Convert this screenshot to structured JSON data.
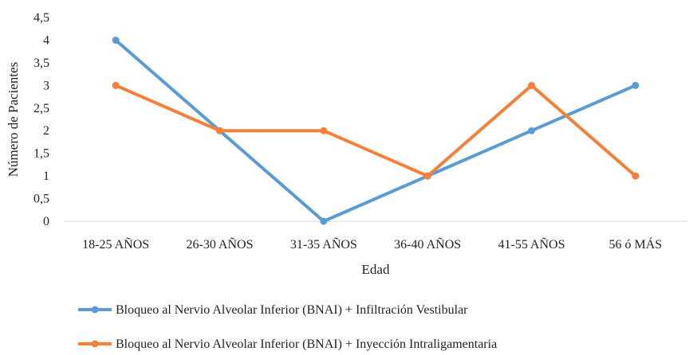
{
  "chart_data": {
    "type": "line",
    "title": "",
    "xlabel": "Edad",
    "ylabel": "Número de Pacientes",
    "ylim": [
      0,
      4.5
    ],
    "yticks": [
      "0",
      "0,5",
      "1",
      "1,5",
      "2",
      "2,5",
      "3",
      "3,5",
      "4",
      "4,5"
    ],
    "categories": [
      "18-25 AÑOS",
      "26-30 AÑOS",
      "31-35 AÑOS",
      "36-40 AÑOS",
      "41-55 AÑOS",
      "56 ó MÁS"
    ],
    "grid": false,
    "legend_position": "bottom",
    "series": [
      {
        "name": "Bloqueo al Nervio Alveolar Inferior (BNAI) + Infiltración Vestibular",
        "color": "#5b9bd5",
        "values": [
          4,
          2,
          0,
          1,
          2,
          3
        ]
      },
      {
        "name": "Bloqueo al Nervio Alveolar Inferior (BNAI) + Inyección Intraligamentaria",
        "color": "#f4803a",
        "values": [
          3,
          2,
          2,
          1,
          3,
          1
        ]
      }
    ]
  }
}
